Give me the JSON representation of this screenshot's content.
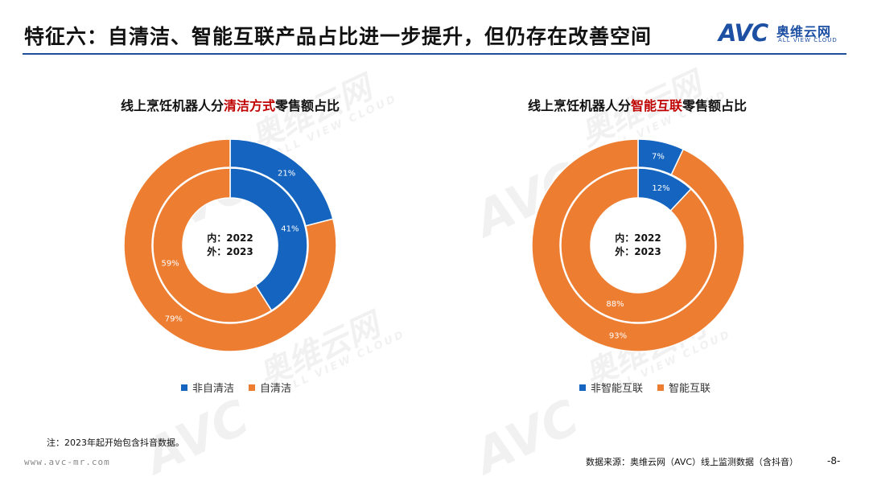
{
  "header": {
    "title": "特征六：自清洁、智能互联产品占比进一步提升，但仍存在改善空间",
    "logo_mark": "AVC",
    "logo_cn": "奥维云网",
    "logo_en": "ALL VIEW CLOUD"
  },
  "watermark": {
    "cn": "奥维云网",
    "en": "ALL VIEW CLOUD",
    "mark": "AVC"
  },
  "charts": [
    {
      "title_pre": "线上烹饪机器人分",
      "title_hl": "清洁方式",
      "title_post": "零售额占比",
      "center_inner": "内：2022",
      "center_outer": "外：2023",
      "legend": [
        "非自清洁",
        "自清洁"
      ]
    },
    {
      "title_pre": "线上烹饪机器人分",
      "title_hl": "智能互联",
      "title_post": "零售额占比",
      "center_inner": "内：2022",
      "center_outer": "外：2023",
      "legend": [
        "非智能互联",
        "智能互联"
      ]
    }
  ],
  "chart_data": [
    {
      "type": "donut",
      "title": "线上烹饪机器人分清洁方式零售额占比",
      "categories": [
        "非自清洁",
        "自清洁"
      ],
      "series": [
        {
          "name": "2022",
          "ring": "inner",
          "values": [
            41,
            59
          ]
        },
        {
          "name": "2023",
          "ring": "outer",
          "values": [
            21,
            79
          ]
        }
      ],
      "colors": [
        "#1565c0",
        "#ed7d31"
      ],
      "legend_position": "bottom"
    },
    {
      "type": "donut",
      "title": "线上烹饪机器人分智能互联零售额占比",
      "categories": [
        "非智能互联",
        "智能互联"
      ],
      "series": [
        {
          "name": "2022",
          "ring": "inner",
          "values": [
            12,
            88
          ]
        },
        {
          "name": "2023",
          "ring": "outer",
          "values": [
            7,
            93
          ]
        }
      ],
      "colors": [
        "#1565c0",
        "#ed7d31"
      ],
      "legend_position": "bottom"
    }
  ],
  "footer": {
    "note": "注：2023年起开始包含抖音数据。",
    "url": "www.avc-mr.com",
    "source": "数据来源：奥维云网（AVC）线上监测数据（含抖音）",
    "page": "-8-"
  }
}
